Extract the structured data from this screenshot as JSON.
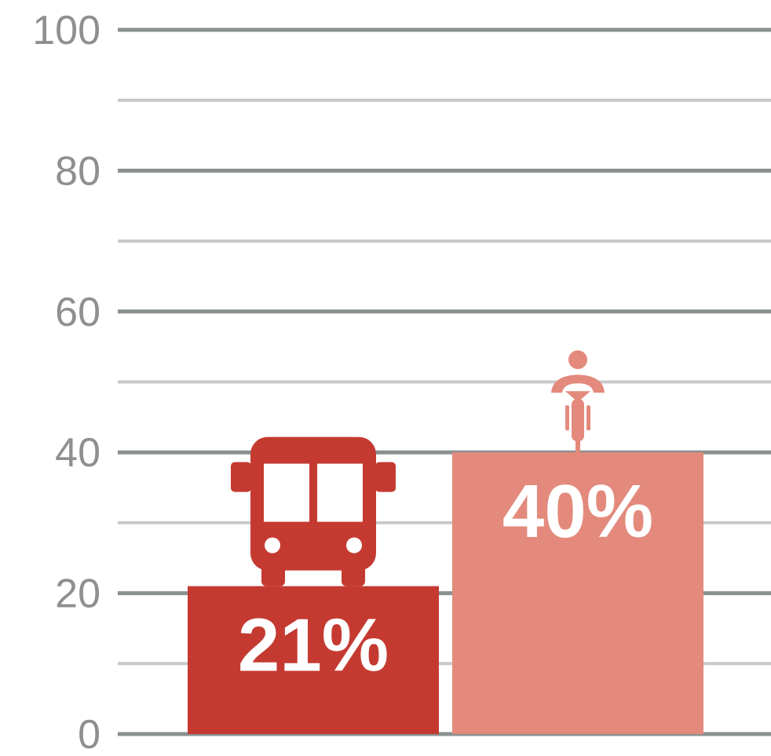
{
  "chart_data": {
    "type": "bar",
    "title": "",
    "xlabel": "",
    "ylabel": "",
    "ylim": [
      0,
      100
    ],
    "y_ticks": [
      "0",
      "20",
      "40",
      "60",
      "80",
      "100"
    ],
    "grid": true,
    "categories": [
      "bus",
      "bicycle"
    ],
    "values": [
      21,
      40
    ],
    "data_labels": [
      "21%",
      "40%"
    ],
    "icons": [
      "bus-icon",
      "bicycle-rider-icon"
    ],
    "colors": [
      "#c43a31",
      "#e38a7c"
    ],
    "grid_major_color": "#8a908f",
    "grid_minor_color": "#c9c9c9"
  }
}
